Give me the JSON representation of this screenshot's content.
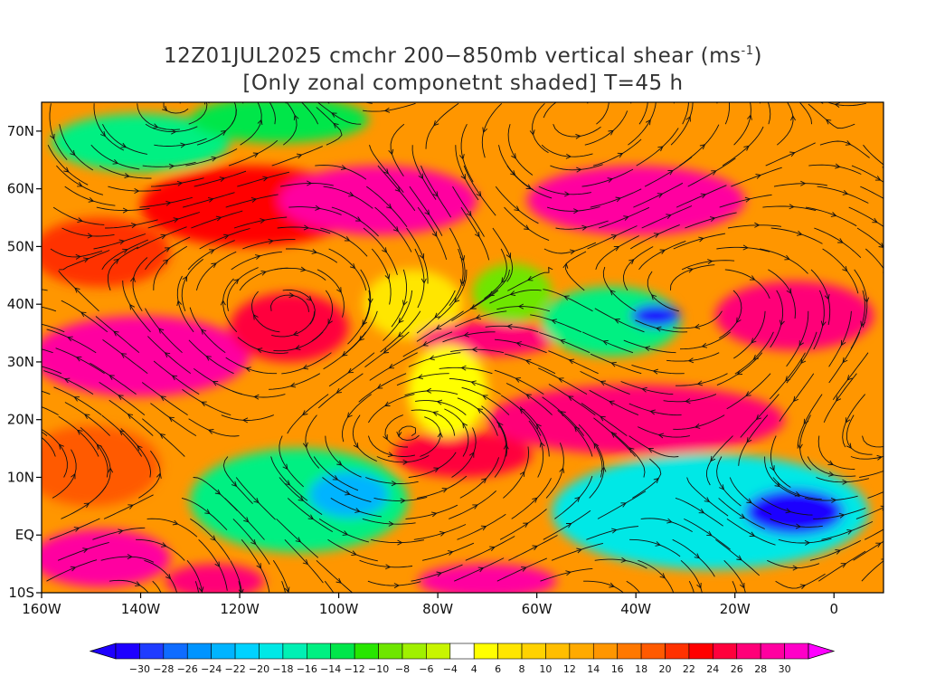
{
  "title": {
    "line1_prefix": "12Z01JUL2025 cmchr 200−850mb vertical shear (ms",
    "line1_superscript": "-1",
    "line1_suffix": ")",
    "line2": "[Only zonal componetnt shaded] T=45 h"
  },
  "map": {
    "projection": "lat-lon",
    "lon_range": [
      -160,
      10
    ],
    "lat_range": [
      -10,
      75
    ],
    "lat_ticks": [
      {
        "value": 70,
        "label": "70N"
      },
      {
        "value": 60,
        "label": "60N"
      },
      {
        "value": 50,
        "label": "50N"
      },
      {
        "value": 40,
        "label": "40N"
      },
      {
        "value": 30,
        "label": "30N"
      },
      {
        "value": 20,
        "label": "20N"
      },
      {
        "value": 10,
        "label": "10N"
      },
      {
        "value": 0,
        "label": "EQ"
      },
      {
        "value": -10,
        "label": "10S"
      }
    ],
    "lon_ticks": [
      {
        "value": -160,
        "label": "160W"
      },
      {
        "value": -140,
        "label": "140W"
      },
      {
        "value": -120,
        "label": "120W"
      },
      {
        "value": -100,
        "label": "100W"
      },
      {
        "value": -80,
        "label": "80W"
      },
      {
        "value": -60,
        "label": "60W"
      },
      {
        "value": -40,
        "label": "40W"
      },
      {
        "value": -20,
        "label": "20W"
      },
      {
        "value": 0,
        "label": "0"
      }
    ],
    "shading_features": [
      {
        "lon": -118,
        "lat": 57,
        "rx": 22,
        "ry": 7,
        "value": 22
      },
      {
        "lon": -92,
        "lat": 58,
        "rx": 20,
        "ry": 6,
        "value": 28
      },
      {
        "lon": -40,
        "lat": 58,
        "rx": 22,
        "ry": 6,
        "value": 28
      },
      {
        "lon": -140,
        "lat": 68,
        "rx": 18,
        "ry": 5,
        "value": -14
      },
      {
        "lon": -112,
        "lat": 72,
        "rx": 18,
        "ry": 4,
        "value": -12
      },
      {
        "lon": -148,
        "lat": 49,
        "rx": 14,
        "ry": 6,
        "value": 20
      },
      {
        "lon": -140,
        "lat": 31,
        "rx": 22,
        "ry": 7,
        "value": 28
      },
      {
        "lon": -110,
        "lat": 36,
        "rx": 12,
        "ry": 6,
        "value": 24
      },
      {
        "lon": -85,
        "lat": 40,
        "rx": 10,
        "ry": 6,
        "value": 6
      },
      {
        "lon": -70,
        "lat": 34,
        "rx": 14,
        "ry": 3,
        "value": 26
      },
      {
        "lon": -45,
        "lat": 37,
        "rx": 14,
        "ry": 6,
        "value": -14
      },
      {
        "lon": -36,
        "lat": 38,
        "rx": 5,
        "ry": 2,
        "value": -30
      },
      {
        "lon": -65,
        "lat": 42,
        "rx": 8,
        "ry": 5,
        "value": -8
      },
      {
        "lon": -8,
        "lat": 38,
        "rx": 16,
        "ry": 6,
        "value": 26
      },
      {
        "lon": -40,
        "lat": 20,
        "rx": 30,
        "ry": 6,
        "value": 26
      },
      {
        "lon": -75,
        "lat": 14,
        "rx": 14,
        "ry": 4,
        "value": 24
      },
      {
        "lon": -108,
        "lat": 6,
        "rx": 22,
        "ry": 9,
        "value": -14
      },
      {
        "lon": -98,
        "lat": 7,
        "rx": 8,
        "ry": 4,
        "value": -22
      },
      {
        "lon": -25,
        "lat": 4,
        "rx": 32,
        "ry": 10,
        "value": -18
      },
      {
        "lon": -8,
        "lat": 4,
        "rx": 10,
        "ry": 4,
        "value": -30
      },
      {
        "lon": -148,
        "lat": -4,
        "rx": 14,
        "ry": 5,
        "value": 28
      },
      {
        "lon": -125,
        "lat": -8,
        "rx": 10,
        "ry": 3,
        "value": 26
      },
      {
        "lon": -70,
        "lat": -8,
        "rx": 14,
        "ry": 3,
        "value": 28
      },
      {
        "lon": -150,
        "lat": 12,
        "rx": 14,
        "ry": 7,
        "value": 18
      },
      {
        "lon": -78,
        "lat": 25,
        "rx": 8,
        "ry": 8,
        "value": 4
      }
    ]
  },
  "colorbar": {
    "colors": [
      "#1e00ff",
      "#1f3cff",
      "#0f6cff",
      "#0094ff",
      "#00b4ff",
      "#00d2ff",
      "#00e8e6",
      "#00f0b4",
      "#00f082",
      "#00e64a",
      "#28e600",
      "#6ee600",
      "#a0f000",
      "#c8f500",
      "#ffffff",
      "#ffff00",
      "#ffe600",
      "#ffd200",
      "#ffbe00",
      "#ffaa00",
      "#ff9600",
      "#ff7800",
      "#ff5a00",
      "#ff3200",
      "#ff0000",
      "#ff003c",
      "#ff0078",
      "#ff00a0",
      "#ff00c8"
    ],
    "left_triangle_color": "#1e00ff",
    "right_triangle_color": "#ff00ff",
    "labels": [
      "−30",
      "−28",
      "−26",
      "−24",
      "−22",
      "−20",
      "−18",
      "−16",
      "−14",
      "−12",
      "−10",
      "−8",
      "−6",
      "−4",
      "4",
      "6",
      "8",
      "10",
      "12",
      "14",
      "16",
      "18",
      "20",
      "22",
      "24",
      "26",
      "28",
      "30"
    ]
  }
}
